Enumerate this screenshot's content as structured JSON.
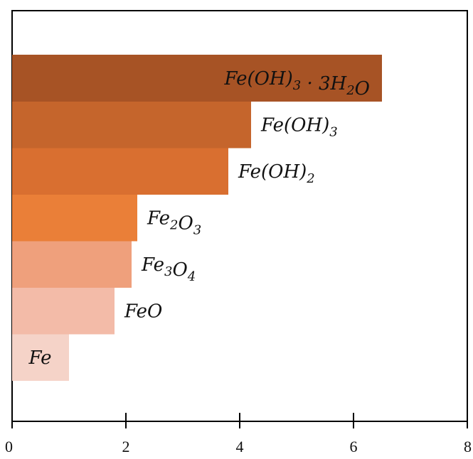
{
  "chart_data": {
    "type": "bar",
    "orientation": "horizontal",
    "xlim": [
      0,
      8
    ],
    "xticks": [
      0,
      2,
      4,
      6,
      8
    ],
    "grid": false,
    "title": "",
    "xlabel": "",
    "ylabel": "",
    "bars": [
      {
        "label": "Fe",
        "value": 1.0,
        "color": "#F5D3C8",
        "parts": [
          {
            "t": "Fe"
          }
        ]
      },
      {
        "label": "FeO",
        "value": 1.8,
        "color": "#F3BBA8",
        "parts": [
          {
            "t": "FeO"
          }
        ]
      },
      {
        "label": "Fe3O4",
        "value": 2.1,
        "color": "#EFA07C",
        "parts": [
          {
            "t": "Fe"
          },
          {
            "t": "3",
            "sub": true
          },
          {
            "t": "O"
          },
          {
            "t": "4",
            "sub": true
          }
        ]
      },
      {
        "label": "Fe2O3",
        "value": 2.2,
        "color": "#EA7F38",
        "parts": [
          {
            "t": "Fe"
          },
          {
            "t": "2",
            "sub": true
          },
          {
            "t": "O"
          },
          {
            "t": "3",
            "sub": true
          }
        ]
      },
      {
        "label": "Fe(OH)2",
        "value": 3.8,
        "color": "#D96F30",
        "parts": [
          {
            "t": "Fe(OH)"
          },
          {
            "t": "2",
            "sub": true
          }
        ]
      },
      {
        "label": "Fe(OH)3",
        "value": 4.2,
        "color": "#C5652C",
        "parts": [
          {
            "t": "Fe(OH)"
          },
          {
            "t": "3",
            "sub": true
          }
        ]
      },
      {
        "label": "Fe(OH)3·3H2O",
        "value": 6.5,
        "color": "#A75325",
        "parts": [
          {
            "t": "Fe(OH)"
          },
          {
            "t": "3",
            "sub": true
          },
          {
            "t": " · 3H"
          },
          {
            "t": "2",
            "sub": true
          },
          {
            "t": "O"
          }
        ]
      }
    ]
  }
}
